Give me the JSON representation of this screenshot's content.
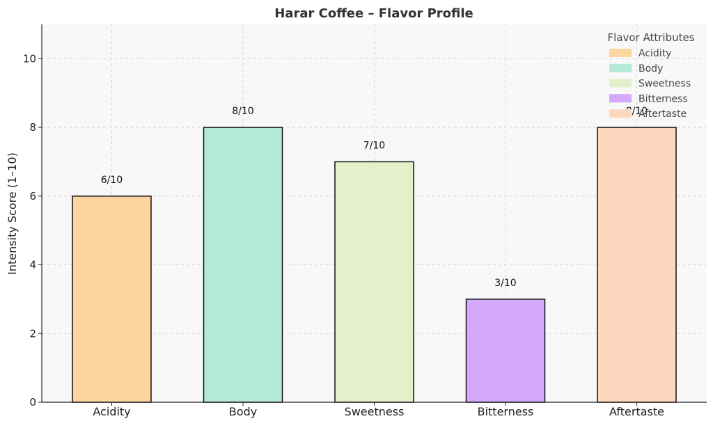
{
  "chart_data": {
    "type": "bar",
    "title": "Harar Coffee – Flavor Profile",
    "xlabel": "",
    "ylabel": "Intensity Score (1–10)",
    "ylim": [
      0,
      11
    ],
    "yticks": [
      0,
      2,
      4,
      6,
      8,
      10
    ],
    "categories": [
      "Acidity",
      "Body",
      "Sweetness",
      "Bitterness",
      "Aftertaste"
    ],
    "values": [
      6,
      8,
      7,
      3,
      8
    ],
    "data_labels": [
      "6/10",
      "8/10",
      "7/10",
      "3/10",
      "8/10"
    ],
    "colors": [
      "#fdd5a0",
      "#b4e9d8",
      "#e3f0c9",
      "#d4a8fb",
      "#fdd8bf"
    ],
    "grid": true,
    "background": "#f8f8f8",
    "legend": {
      "title": "Flavor Attributes",
      "placement": "top-right",
      "entries": [
        "Acidity",
        "Body",
        "Sweetness",
        "Bitterness",
        "Aftertaste"
      ]
    }
  }
}
